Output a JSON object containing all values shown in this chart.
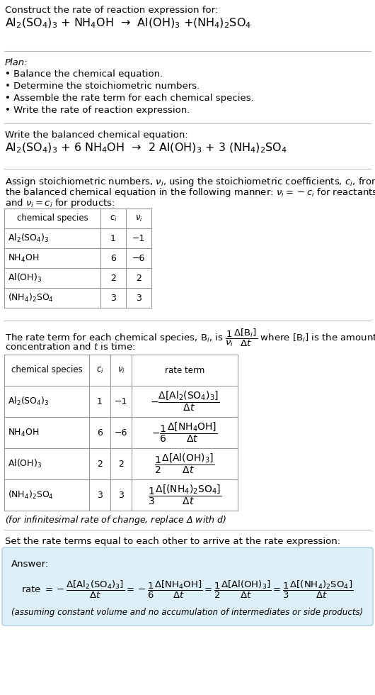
{
  "title_line1": "Construct the rate of reaction expression for:",
  "title_line2": "Al$_2$(SO$_4$)$_3$ + NH$_4$OH  →  Al(OH)$_3$ +(NH$_4$)$_2$SO$_4$",
  "plan_header": "Plan:",
  "plan_items": [
    "• Balance the chemical equation.",
    "• Determine the stoichiometric numbers.",
    "• Assemble the rate term for each chemical species.",
    "• Write the rate of reaction expression."
  ],
  "balanced_header": "Write the balanced chemical equation:",
  "balanced_eq": "Al$_2$(SO$_4$)$_3$ + 6 NH$_4$OH  →  2 Al(OH)$_3$ + 3 (NH$_4$)$_2$SO$_4$",
  "stoich_intro_1": "Assign stoichiometric numbers, $\\nu_i$, using the stoichiometric coefficients, $c_i$, from",
  "stoich_intro_2": "the balanced chemical equation in the following manner: $\\nu_i = -c_i$ for reactants",
  "stoich_intro_3": "and $\\nu_i = c_i$ for products:",
  "table1_headers": [
    "chemical species",
    "$c_i$",
    "$\\nu_i$"
  ],
  "table1_rows": [
    [
      "Al$_2$(SO$_4$)$_3$",
      "1",
      "−1"
    ],
    [
      "NH$_4$OH",
      "6",
      "−6"
    ],
    [
      "Al(OH)$_3$",
      "2",
      "2"
    ],
    [
      "(NH$_4$)$_2$SO$_4$",
      "3",
      "3"
    ]
  ],
  "rate_term_line1": "The rate term for each chemical species, B$_i$, is $\\dfrac{1}{\\nu_i}\\dfrac{\\Delta[\\mathrm{B}_i]}{\\Delta t}$ where [B$_i$] is the amount",
  "rate_term_line2": "concentration and $t$ is time:",
  "table2_headers": [
    "chemical species",
    "$c_i$",
    "$\\nu_i$",
    "rate term"
  ],
  "table2_rows": [
    [
      "Al$_2$(SO$_4$)$_3$",
      "1",
      "−1",
      "$-\\dfrac{\\Delta[\\mathrm{Al_2(SO_4)_3}]}{\\Delta t}$"
    ],
    [
      "NH$_4$OH",
      "6",
      "−6",
      "$-\\dfrac{1}{6}\\dfrac{\\Delta[\\mathrm{NH_4OH}]}{\\Delta t}$"
    ],
    [
      "Al(OH)$_3$",
      "2",
      "2",
      "$\\dfrac{1}{2}\\dfrac{\\Delta[\\mathrm{Al(OH)_3}]}{\\Delta t}$"
    ],
    [
      "(NH$_4$)$_2$SO$_4$",
      "3",
      "3",
      "$\\dfrac{1}{3}\\dfrac{\\Delta[\\mathrm{(NH_4)_2SO_4}]}{\\Delta t}$"
    ]
  ],
  "infinitesimal_note": "(for infinitesimal rate of change, replace Δ with $d$)",
  "set_equal_text": "Set the rate terms equal to each other to arrive at the rate expression:",
  "answer_label": "Answer:",
  "answer_box_color": "#ddf0f8",
  "answer_box_edge": "#aaccdd",
  "rate_expr": "rate $= -\\dfrac{\\Delta[\\mathrm{Al_2(SO_4)_3}]}{\\Delta t} = -\\dfrac{1}{6}\\dfrac{\\Delta[\\mathrm{NH_4OH}]}{\\Delta t} = \\dfrac{1}{2}\\dfrac{\\Delta[\\mathrm{Al(OH)_3}]}{\\Delta t} = \\dfrac{1}{3}\\dfrac{\\Delta[\\mathrm{(NH_4)_2SO_4}]}{\\Delta t}$",
  "assuming_note": "(assuming constant volume and no accumulation of intermediates or side products)",
  "bg_color": "#ffffff",
  "text_color": "#000000"
}
